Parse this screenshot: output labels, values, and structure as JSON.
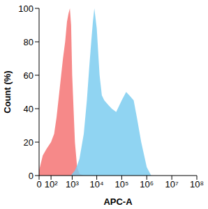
{
  "chart_data": {
    "type": "area",
    "x_label": "APC-A",
    "y_label": "Count (%)",
    "log": "x",
    "grid": false,
    "xlim": [
      0,
      100000000
    ],
    "xticks": [
      0,
      {
        "value": 100,
        "label": "10²"
      },
      {
        "value": 1000,
        "label": "10³"
      },
      {
        "value": 10000,
        "label": "10⁴"
      },
      {
        "value": 100000,
        "label": "10⁵"
      },
      {
        "value": 1000000,
        "label": "10⁶"
      },
      {
        "value": 10000000,
        "label": "10⁷"
      },
      {
        "value": 100000000,
        "label": "10⁸"
      }
    ],
    "ylim": [
      0,
      100
    ],
    "yticks": [
      0,
      20,
      40,
      60,
      80,
      100
    ],
    "x": [
      0,
      20,
      50,
      100,
      150,
      200,
      300,
      400,
      500,
      600,
      700,
      800,
      900,
      1000,
      1300,
      1600,
      2000,
      3000,
      4000,
      5000,
      6000,
      7000,
      8000,
      10000,
      13000,
      16000,
      20000,
      30000,
      40000,
      60000,
      100000,
      150000,
      200000,
      300000,
      400000,
      600000,
      1000000,
      1500000
    ],
    "series": [
      {
        "color": "#f47474",
        "values": [
          3,
          12,
          16,
          20,
          25,
          35,
          55,
          70,
          80,
          92,
          97,
          100,
          90,
          60,
          20,
          5,
          1,
          0,
          0,
          0,
          0,
          0,
          0,
          0,
          0,
          0,
          0,
          0,
          0,
          0,
          0,
          0,
          0,
          0,
          0,
          0,
          0,
          0
        ]
      },
      {
        "color": "#7ccdf0",
        "values": [
          0,
          0,
          0,
          0,
          0,
          0,
          0,
          0,
          0,
          0,
          0,
          0,
          0,
          1,
          3,
          6,
          10,
          25,
          45,
          65,
          80,
          92,
          100,
          88,
          60,
          48,
          45,
          42,
          40,
          38,
          45,
          50,
          48,
          45,
          35,
          20,
          5,
          0
        ]
      }
    ]
  }
}
